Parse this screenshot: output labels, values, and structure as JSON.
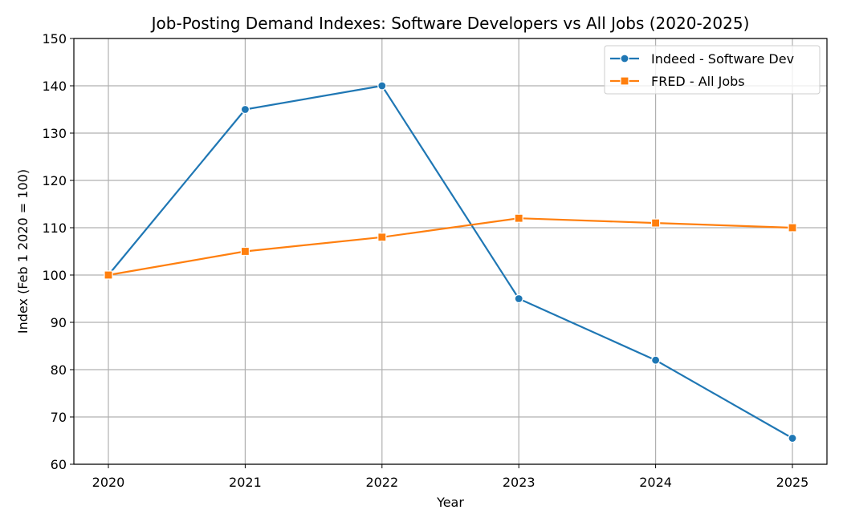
{
  "chart_data": {
    "type": "line",
    "title": "Job-Posting Demand Indexes: Software Developers vs All Jobs (2020-2025)",
    "xlabel": "Year",
    "ylabel": "Index (Feb 1 2020 = 100)",
    "x": [
      2020,
      2021,
      2022,
      2023,
      2024,
      2025
    ],
    "x_tick_labels": [
      "2020",
      "2021",
      "2022",
      "2023",
      "2024",
      "2025"
    ],
    "ylim": [
      60,
      150
    ],
    "y_ticks": [
      60,
      70,
      80,
      90,
      100,
      110,
      120,
      130,
      140,
      150
    ],
    "grid": true,
    "legend_position": "top-right",
    "series": [
      {
        "name": "Indeed - Software Dev",
        "color": "#1f77b4",
        "marker": "circle",
        "values": [
          100,
          135,
          140,
          95,
          82,
          65.5
        ]
      },
      {
        "name": "FRED - All Jobs",
        "color": "#ff7f0e",
        "marker": "square",
        "values": [
          100,
          105,
          108,
          112,
          111,
          110
        ]
      }
    ]
  }
}
